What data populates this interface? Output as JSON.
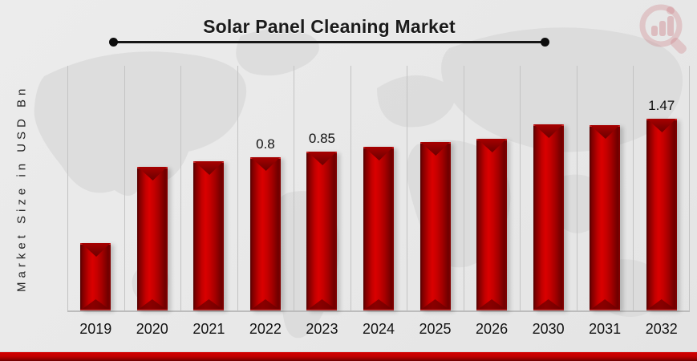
{
  "header": {
    "logo": "market-research-magnifier-logo"
  },
  "chart_data": {
    "type": "bar",
    "title": "Solar Panel Cleaning Market",
    "xlabel": "",
    "ylabel": "Market Size in USD Bn",
    "categories": [
      "2019",
      "2020",
      "2021",
      "2022",
      "2023",
      "2024",
      "2025",
      "2026",
      "2030",
      "2031",
      "2032"
    ],
    "values": [
      0.35,
      0.71,
      0.75,
      0.8,
      0.85,
      0.9,
      0.96,
      1.02,
      1.3,
      1.38,
      1.47
    ],
    "data_labels": [
      "",
      "",
      "",
      "0.8",
      "0.85",
      "",
      "",
      "",
      "",
      "",
      "1.47"
    ],
    "bar_height_frac": [
      0.275,
      0.587,
      0.61,
      0.626,
      0.649,
      0.669,
      0.689,
      0.702,
      0.761,
      0.757,
      0.784
    ],
    "bar_color": "#c40000",
    "bar_edge_color": "#5f0000",
    "gridline_color": "#c3c3c3",
    "grid": "vertical category separators only",
    "legend": "none",
    "ylim_shown": "no numeric y-axis ticks visible"
  },
  "footer": {
    "accent_color": "#c00000"
  }
}
